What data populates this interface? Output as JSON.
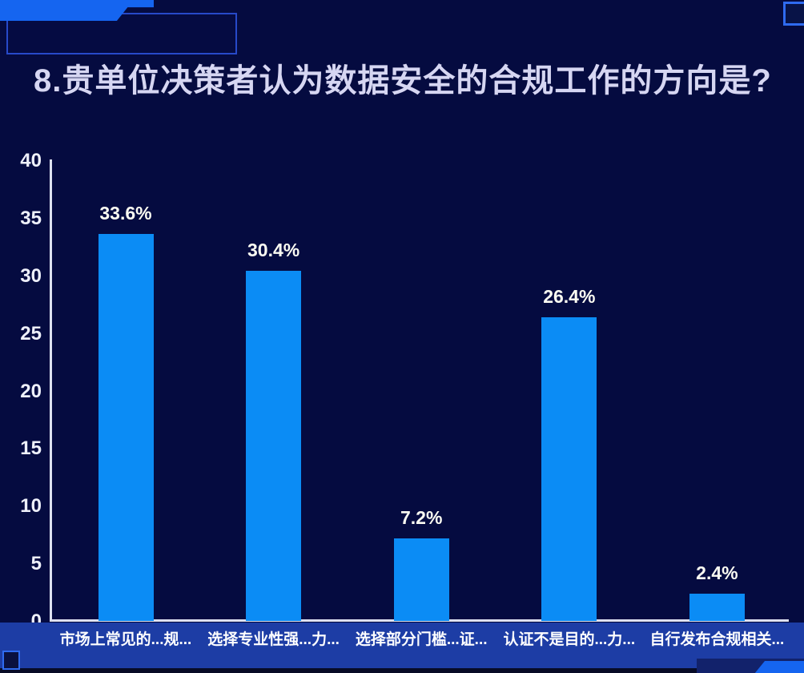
{
  "title": "8.贵单位决策者认为数据安全的合规工作的方向是?",
  "colors": {
    "background": "#050b40",
    "bar": "#0b8cf5",
    "axis_line": "#dde1f0",
    "title_text": "#d6d6f2",
    "value_label_text": "#fbfbf2",
    "tick_label_text": "#eef0fa",
    "x_label_band": "#1d3da5",
    "accent_bright_blue": "#1565f0",
    "corner_outline": "#2749c9",
    "bottom_strip": "#070b26"
  },
  "chart_data": {
    "type": "bar",
    "title": "8.贵单位决策者认为数据安全的合规工作的方向是?",
    "categories": [
      "市场上常见的...规...",
      "选择专业性强...力...",
      "选择部分门槛...证...",
      "认证不是目的...力...",
      "自行发布合规相关..."
    ],
    "values": [
      33.6,
      30.4,
      7.2,
      26.4,
      2.4
    ],
    "value_labels": [
      "33.6%",
      "30.4%",
      "7.2%",
      "26.4%",
      "2.4%"
    ],
    "xlabel": "",
    "ylabel": "",
    "ylim": [
      0,
      40
    ],
    "yticks": [
      0,
      5,
      10,
      15,
      20,
      25,
      30,
      35,
      40
    ],
    "grid": false,
    "legend_position": "none"
  }
}
